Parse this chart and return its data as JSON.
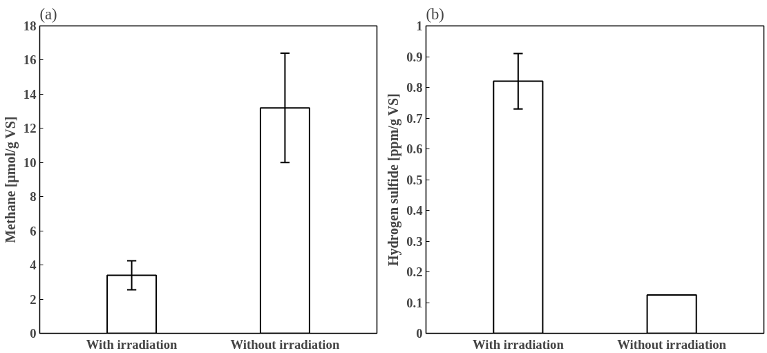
{
  "chart_data": [
    {
      "type": "bar",
      "title": "(a)",
      "ylabel": "Methane [µmol/g VS]",
      "categories": [
        "With irradiation",
        "Without irradiation"
      ],
      "values": [
        3.4,
        13.2
      ],
      "errors": [
        0.85,
        3.2
      ],
      "colors": [
        "#ffffff",
        "#ffffff"
      ],
      "ylim": [
        0,
        18
      ],
      "yticks": [
        0,
        2,
        4,
        6,
        8,
        10,
        12,
        14,
        16,
        18
      ],
      "grid": false,
      "legend": false
    },
    {
      "type": "bar",
      "title": "(b)",
      "ylabel": "Hydrogen sulfide [ppm/g VS]",
      "categories": [
        "With irradiation",
        "Without irradiation"
      ],
      "values": [
        0.82,
        0.125
      ],
      "errors": [
        0.09,
        null
      ],
      "colors": [
        "#ffffff",
        "#ffffff"
      ],
      "ylim": [
        0,
        1
      ],
      "yticks": [
        0,
        0.1,
        0.2,
        0.3,
        0.4,
        0.5,
        0.6,
        0.7,
        0.8,
        0.9,
        1
      ],
      "grid": false,
      "legend": false
    }
  ]
}
